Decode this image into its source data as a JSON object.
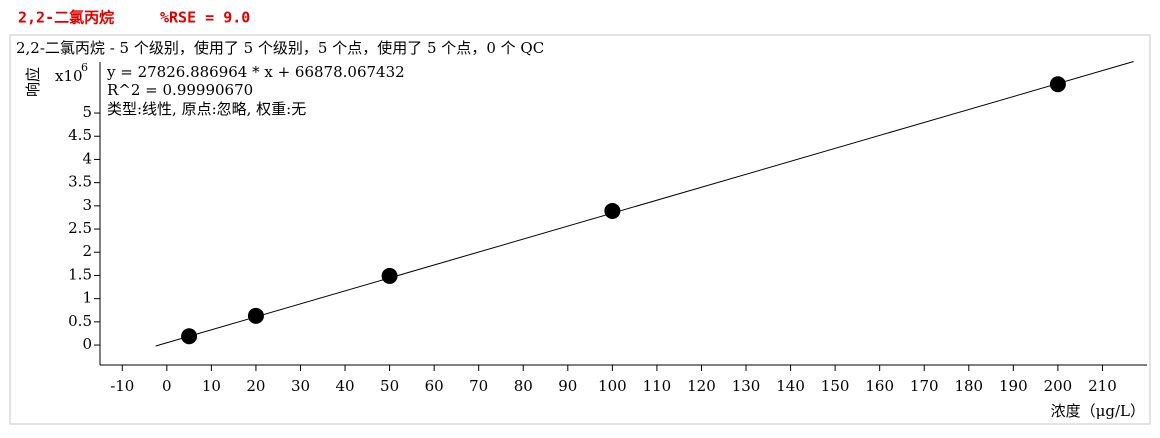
{
  "header": {
    "title": "2,2-二氯丙烷",
    "rse": "%RSE = 9.0"
  },
  "chart_data": {
    "type": "scatter",
    "title": "2,2-二氯丙烷 - 5 个级别，使用了 5 个级别，5 个点，使用了 5 个点，0 个 QC",
    "annotations": [
      "y = 27826.886964 * x  + 66878.067432",
      "R^2 = 0.99990670",
      "类型:线性, 原点:忽略, 权重:无"
    ],
    "y_multiplier": "x10",
    "y_multiplier_exp": "6",
    "xlabel": "浓度（μg/L）",
    "ylabel": "响应",
    "xlim": [
      -15,
      220
    ],
    "xticks": [
      -10,
      0,
      10,
      20,
      30,
      40,
      50,
      60,
      70,
      80,
      90,
      100,
      110,
      120,
      130,
      140,
      150,
      160,
      170,
      180,
      190,
      200,
      210
    ],
    "ylim": [
      -0.43,
      6.1
    ],
    "yticks": [
      0,
      0.5,
      1,
      1.5,
      2,
      2.5,
      3,
      3.5,
      4,
      4.5,
      5
    ],
    "series": [
      {
        "x": [
          5,
          20,
          50,
          100,
          200
        ],
        "values": [
          0.19,
          0.63,
          1.49,
          2.89,
          5.62
        ],
        "color": "#000000"
      }
    ],
    "fit_line": {
      "x": [
        -2.5,
        217
      ],
      "values": [
        -0.02,
        6.11
      ],
      "color": "#000000"
    }
  }
}
